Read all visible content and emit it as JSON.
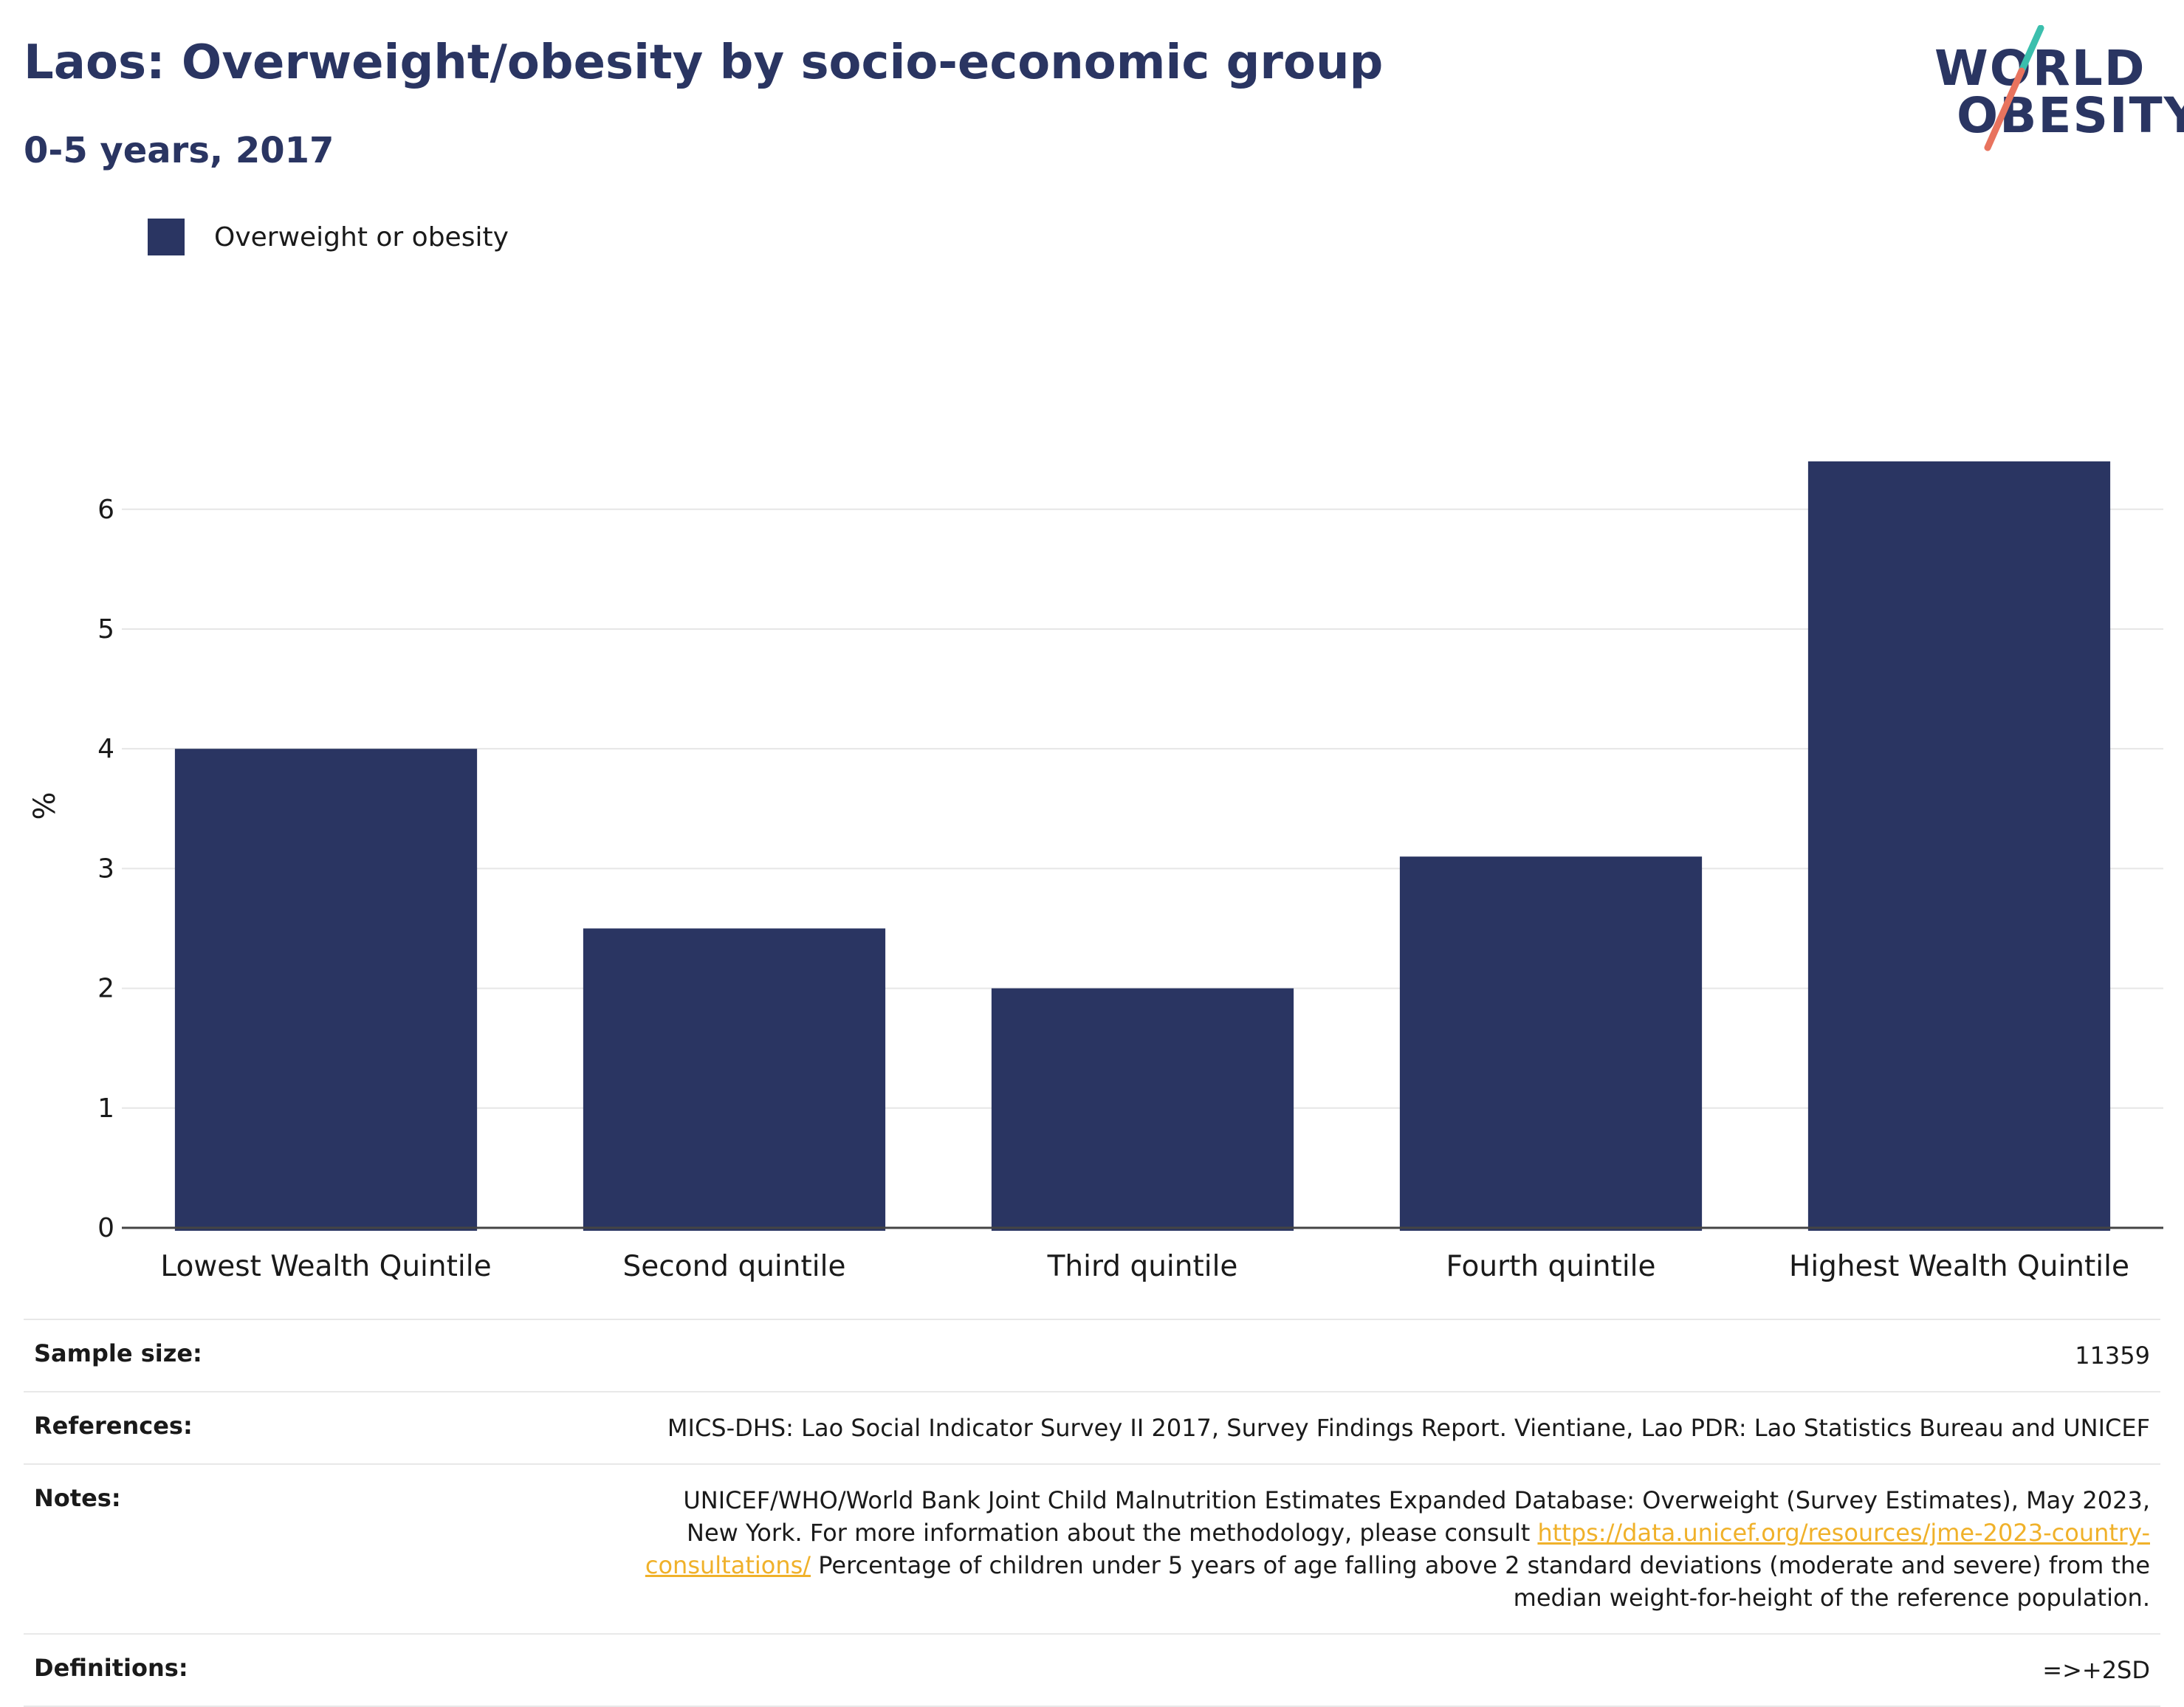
{
  "header": {
    "title": "Laos: Overweight/obesity by socio-economic group",
    "subtitle": "0-5 years, 2017"
  },
  "logo": {
    "line1": "WORLD",
    "line2": "OBESITY",
    "colors": {
      "text": "#2a3562",
      "slash_top": "#3bbfad",
      "slash_bottom": "#e8735e"
    }
  },
  "legend": {
    "label": "Overweight or obesity",
    "color": "#2a3562"
  },
  "chart_data": {
    "type": "bar",
    "categories": [
      "Lowest Wealth Quintile",
      "Second quintile",
      "Third quintile",
      "Fourth quintile",
      "Highest Wealth Quintile"
    ],
    "series": [
      {
        "name": "Overweight or obesity",
        "values": [
          4.0,
          2.5,
          2.0,
          3.1,
          6.4
        ],
        "color": "#2a3562"
      }
    ],
    "ylabel": "%",
    "ylim": [
      0,
      6.8
    ],
    "yticks": [
      0,
      1,
      2,
      3,
      4,
      5,
      6
    ],
    "grid": true,
    "legend_position": "top-left"
  },
  "info": {
    "sample_size": {
      "label": "Sample size:",
      "value": "11359"
    },
    "references": {
      "label": "References:",
      "value": "MICS-DHS: Lao Social Indicator Survey II 2017, Survey Findings Report. Vientiane, Lao PDR: Lao Statistics Bureau and UNICEF"
    },
    "notes": {
      "label": "Notes:",
      "text_before": "UNICEF/WHO/World Bank Joint Child Malnutrition Estimates Expanded Database: Overweight (Survey Estimates), May 2023, New York. For more information about the methodology, please consult ",
      "link": "https://data.unicef.org/resources/jme-2023-country-consultations/",
      "text_after": " Percentage of children under 5 years of age falling above 2 standard deviations (moderate and severe) from the median weight-for-height of the reference population."
    },
    "definitions": {
      "label": "Definitions:",
      "value": "=>+2SD"
    }
  }
}
